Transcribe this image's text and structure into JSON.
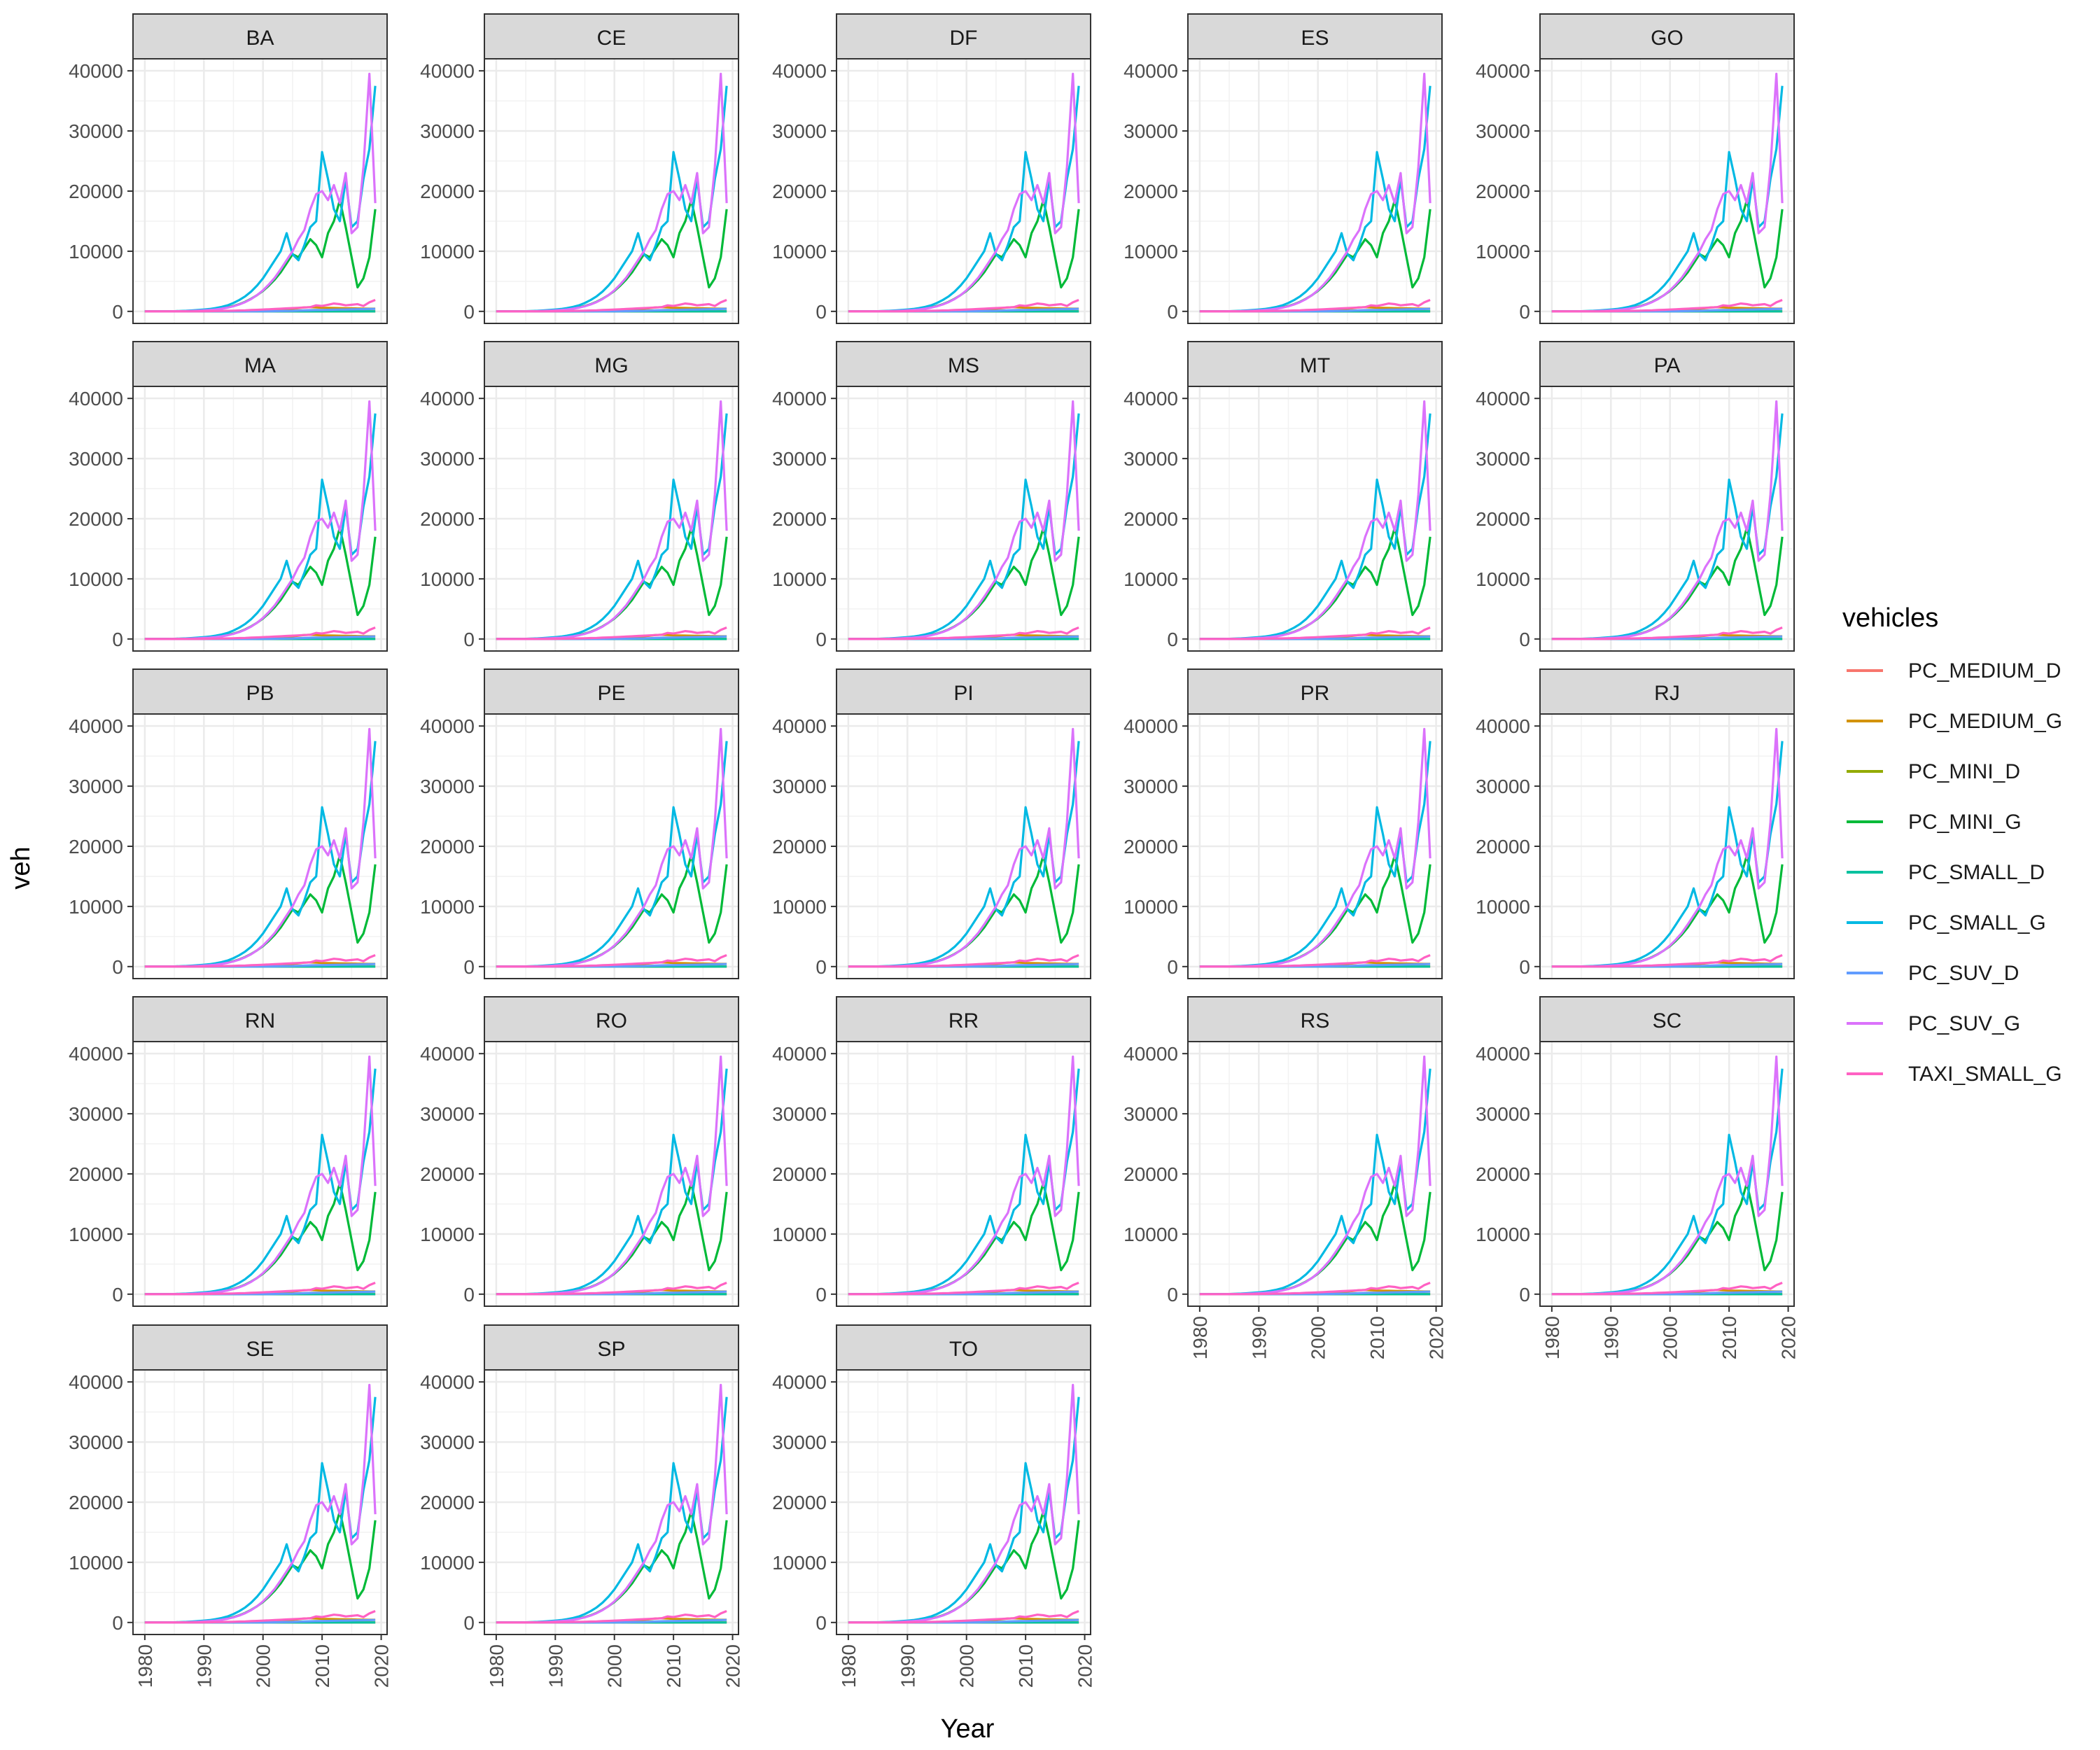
{
  "chart_data": {
    "type": "line",
    "title": "",
    "xlabel": "Year",
    "ylabel": "veh",
    "xlim": [
      1980,
      2019
    ],
    "ylim": [
      0,
      40000
    ],
    "x_ticks": [
      1980,
      1990,
      2000,
      2010,
      2020
    ],
    "y_ticks": [
      0,
      10000,
      20000,
      30000,
      40000
    ],
    "grid": true,
    "legend_position": "right",
    "legend": {
      "title": "vehicles"
    },
    "facets": [
      "BA",
      "CE",
      "DF",
      "ES",
      "GO",
      "MA",
      "MG",
      "MS",
      "MT",
      "PA",
      "PB",
      "PE",
      "PI",
      "PR",
      "RJ",
      "RN",
      "RO",
      "RR",
      "RS",
      "SC",
      "SE",
      "SP",
      "TO"
    ],
    "x": [
      1980,
      1981,
      1982,
      1983,
      1984,
      1985,
      1986,
      1987,
      1988,
      1989,
      1990,
      1991,
      1992,
      1993,
      1994,
      1995,
      1996,
      1997,
      1998,
      1999,
      2000,
      2001,
      2002,
      2003,
      2004,
      2005,
      2006,
      2007,
      2008,
      2009,
      2010,
      2011,
      2012,
      2013,
      2014,
      2015,
      2016,
      2017,
      2018,
      2019
    ],
    "series": [
      {
        "name": "PC_MEDIUM_D",
        "color": "#F8766D",
        "values": [
          0,
          0,
          0,
          0,
          0,
          0,
          0,
          0,
          0,
          0,
          0,
          0,
          0,
          0,
          0,
          0,
          0,
          0,
          0,
          0,
          0,
          0,
          0,
          0,
          0,
          0,
          0,
          0,
          0,
          0,
          0,
          0,
          0,
          0,
          0,
          0,
          0,
          0,
          0,
          0
        ]
      },
      {
        "name": "PC_MEDIUM_G",
        "color": "#D39200",
        "values": [
          0,
          0,
          0,
          0,
          0,
          0,
          0,
          0,
          0,
          0,
          5,
          8,
          10,
          15,
          20,
          30,
          40,
          60,
          80,
          100,
          130,
          170,
          220,
          280,
          350,
          450,
          550,
          650,
          700,
          650,
          600,
          580,
          560,
          540,
          520,
          500,
          480,
          460,
          450,
          440
        ]
      },
      {
        "name": "PC_MINI_D",
        "color": "#93AA00",
        "values": [
          0,
          0,
          0,
          0,
          0,
          0,
          0,
          0,
          0,
          0,
          0,
          0,
          0,
          0,
          0,
          0,
          0,
          0,
          0,
          0,
          0,
          0,
          0,
          0,
          0,
          0,
          0,
          0,
          0,
          0,
          0,
          0,
          0,
          0,
          0,
          0,
          0,
          0,
          0,
          0
        ]
      },
      {
        "name": "PC_MINI_G",
        "color": "#00BA38",
        "values": [
          0,
          0,
          0,
          0,
          0,
          20,
          40,
          60,
          90,
          130,
          180,
          250,
          350,
          480,
          650,
          900,
          1200,
          1600,
          2100,
          2700,
          3400,
          4300,
          5300,
          6500,
          8000,
          9500,
          9000,
          10500,
          12000,
          11000,
          9000,
          13000,
          15000,
          18500,
          14000,
          9000,
          4000,
          5500,
          9000,
          17000
        ]
      },
      {
        "name": "PC_SMALL_D",
        "color": "#00C19F",
        "values": [
          0,
          0,
          0,
          0,
          0,
          0,
          0,
          0,
          0,
          0,
          0,
          0,
          0,
          0,
          0,
          0,
          0,
          0,
          0,
          0,
          0,
          0,
          0,
          0,
          0,
          0,
          0,
          0,
          0,
          0,
          0,
          0,
          0,
          0,
          0,
          0,
          0,
          0,
          0,
          0
        ]
      },
      {
        "name": "PC_SMALL_G",
        "color": "#00B9E3",
        "values": [
          0,
          0,
          0,
          0,
          0,
          30,
          60,
          100,
          150,
          220,
          300,
          400,
          550,
          750,
          1000,
          1400,
          1900,
          2500,
          3300,
          4300,
          5500,
          7000,
          8500,
          10000,
          13000,
          9500,
          8500,
          11000,
          14000,
          15000,
          26500,
          22000,
          17000,
          15000,
          22000,
          14000,
          15000,
          22000,
          27000,
          37500
        ]
      },
      {
        "name": "PC_SUV_D",
        "color": "#619CFF",
        "values": [
          0,
          0,
          0,
          0,
          0,
          0,
          0,
          0,
          0,
          0,
          0,
          0,
          0,
          0,
          0,
          0,
          0,
          0,
          0,
          10,
          20,
          30,
          40,
          60,
          80,
          100,
          130,
          160,
          200,
          220,
          240,
          260,
          280,
          300,
          320,
          340,
          360,
          380,
          400,
          420
        ]
      },
      {
        "name": "PC_SUV_G",
        "color": "#DB72FB",
        "values": [
          0,
          0,
          0,
          0,
          0,
          10,
          20,
          40,
          70,
          110,
          160,
          230,
          320,
          450,
          620,
          850,
          1150,
          1550,
          2050,
          2700,
          3500,
          4500,
          5600,
          7000,
          8500,
          10000,
          12000,
          13500,
          17000,
          19500,
          20000,
          18500,
          21000,
          18000,
          23000,
          13000,
          14000,
          24000,
          39500,
          18000
        ]
      },
      {
        "name": "TAXI_SMALL_G",
        "color": "#FF61C3",
        "values": [
          0,
          0,
          0,
          0,
          0,
          0,
          0,
          0,
          0,
          0,
          20,
          40,
          60,
          80,
          100,
          120,
          150,
          180,
          220,
          260,
          300,
          350,
          400,
          450,
          500,
          550,
          600,
          650,
          700,
          1000,
          900,
          1100,
          1300,
          1200,
          1000,
          1100,
          1200,
          900,
          1500,
          1900
        ]
      }
    ]
  }
}
